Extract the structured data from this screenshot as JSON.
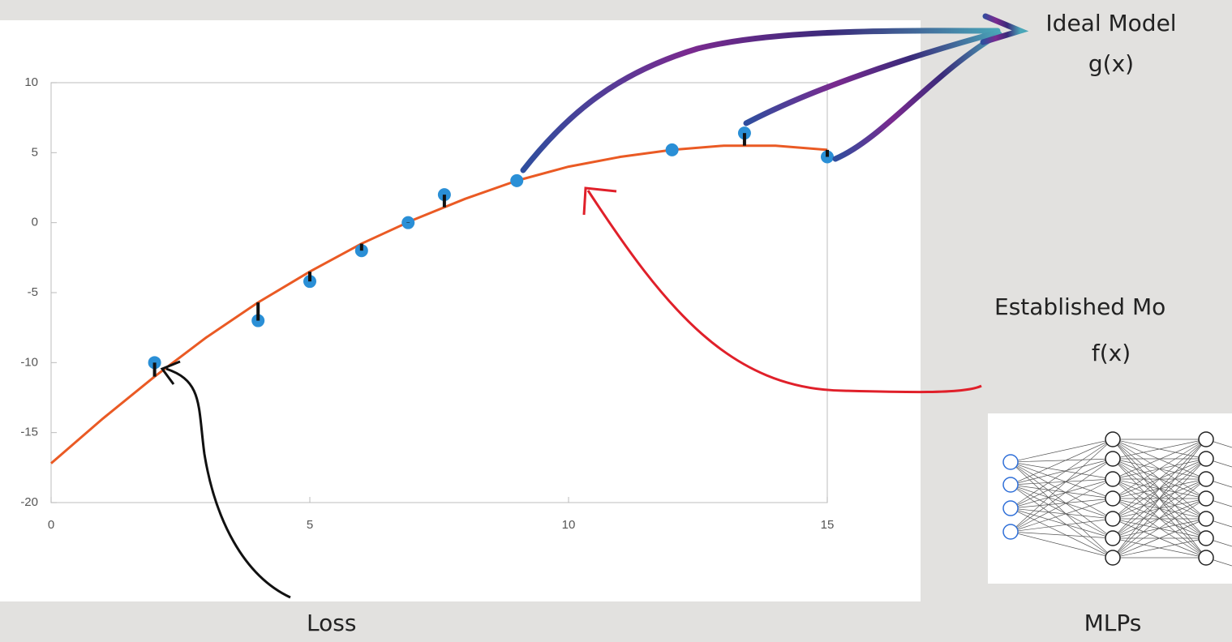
{
  "chart_data": {
    "type": "scatter",
    "xlim": [
      0,
      15
    ],
    "ylim": [
      -20,
      10
    ],
    "xticks": [
      0,
      5,
      10,
      15
    ],
    "yticks": [
      10,
      5,
      0,
      -5,
      -10,
      -15,
      -20
    ],
    "grid": false,
    "series": [
      {
        "type": "scatter",
        "color": "#2a8fd6",
        "x": [
          2,
          4,
          5,
          6,
          6.9,
          7.6,
          9,
          12,
          13.4,
          15
        ],
        "values": [
          -10,
          -7,
          -4.2,
          -2,
          0,
          2,
          3,
          5.2,
          6.4,
          4.7
        ]
      },
      {
        "type": "line",
        "color": "#ea5a24",
        "x": [
          0,
          1,
          2,
          3,
          4,
          5,
          6,
          7,
          8,
          9,
          10,
          11,
          12,
          13,
          14,
          15
        ],
        "values": [
          -17.2,
          -14,
          -11,
          -8.2,
          -5.7,
          -3.5,
          -1.5,
          0.2,
          1.7,
          3,
          4,
          4.7,
          5.2,
          5.5,
          5.5,
          5.2
        ]
      }
    ]
  },
  "slide": {
    "ideal": "Ideal Model",
    "ideal_fn": "g(x)",
    "established": "Established Mo",
    "established_fn": "f(x)",
    "loss": "Loss",
    "mlps": "MLPs"
  }
}
